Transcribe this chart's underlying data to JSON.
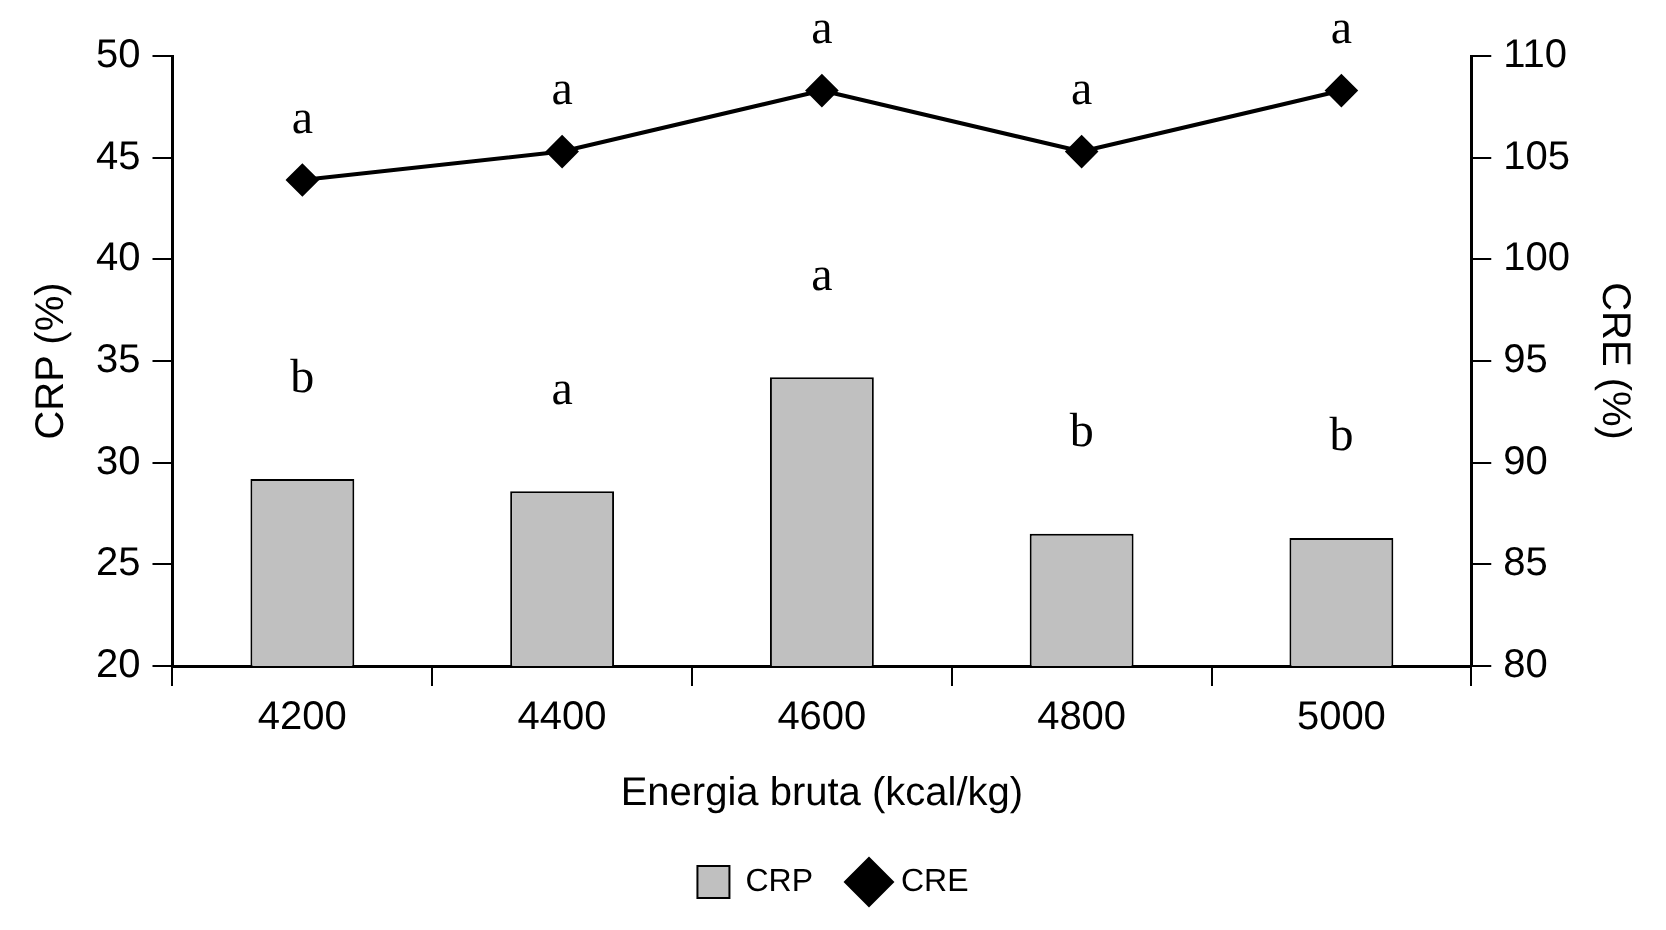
{
  "chart_data": {
    "type": "bar",
    "xlabel": "Energia bruta (kcal/kg)",
    "ylabel": "CRP (%)",
    "y2label": "CRE (%)",
    "categories": [
      "4200",
      "4400",
      "4600",
      "4800",
      "5000"
    ],
    "series": [
      {
        "name": "CRP",
        "color": "#c0c0c0",
        "values": [
          29.2,
          28.6,
          34.2,
          26.5,
          26.3
        ],
        "value_labels": [
          "b",
          "a",
          "a",
          "b",
          "b"
        ]
      },
      {
        "name": "CRE",
        "type": "line",
        "axis": "y2",
        "color": "#000000",
        "marker": "diamond",
        "values": [
          103.9,
          105.3,
          108.3,
          105.3,
          108.3
        ],
        "value_labels": [
          "a",
          "a",
          "a",
          "a",
          "a"
        ]
      }
    ],
    "ylim": [
      20,
      50
    ],
    "yticks": [
      20,
      25,
      30,
      35,
      40,
      45,
      50
    ],
    "y2lim": [
      80,
      110
    ],
    "y2ticks": [
      80,
      85,
      90,
      95,
      100,
      105,
      110
    ],
    "grid": false,
    "legend": "bottom"
  }
}
